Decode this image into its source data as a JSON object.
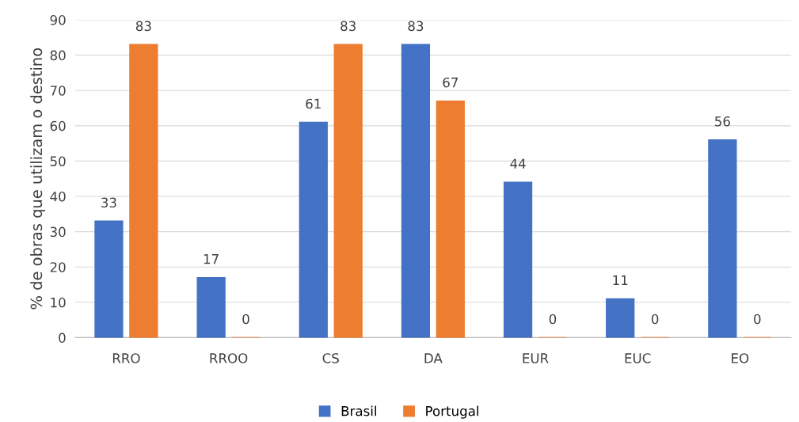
{
  "chart_data": {
    "type": "bar",
    "ylabel": "% de obras que utilizam o destino",
    "categories": [
      "RRO",
      "RROO",
      "CS",
      "DA",
      "EUR",
      "EUC",
      "EO"
    ],
    "series": [
      {
        "name": "Brasil",
        "color": "#4472c4",
        "values": [
          33,
          17,
          61,
          83,
          44,
          11,
          56
        ]
      },
      {
        "name": "Portugal",
        "color": "#ed7d31",
        "values": [
          83,
          0,
          83,
          67,
          0,
          0,
          0
        ]
      }
    ],
    "ylim": [
      0,
      90
    ],
    "yticks": [
      0,
      10,
      20,
      30,
      40,
      50,
      60,
      70,
      80,
      90
    ],
    "grid": "y",
    "legend": "bottom",
    "data_labels": true
  }
}
